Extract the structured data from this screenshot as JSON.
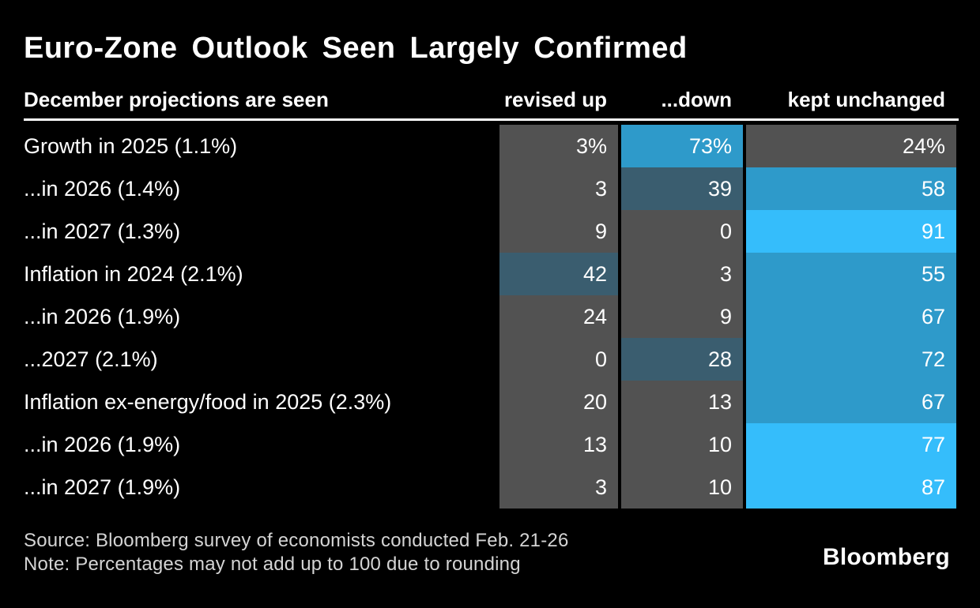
{
  "title": "Euro-Zone Outlook Seen Largely Confirmed",
  "chart_data": {
    "type": "heatmap",
    "title": "Euro-Zone Outlook Seen Largely Confirmed",
    "row_axis_label": "December projections are seen",
    "columns": [
      "revised up",
      "...down",
      "kept unchanged"
    ],
    "unit": "%",
    "rows": [
      {
        "label": "Growth in 2025 (1.1%)",
        "display": [
          "3%",
          "73%",
          "24%"
        ],
        "values": [
          3,
          73,
          24
        ]
      },
      {
        "label": "...in 2026 (1.4%)",
        "display": [
          "3",
          "39",
          "58"
        ],
        "values": [
          3,
          39,
          58
        ]
      },
      {
        "label": "...in 2027 (1.3%)",
        "display": [
          "9",
          "0",
          "91"
        ],
        "values": [
          9,
          0,
          91
        ]
      },
      {
        "label": "Inflation in 2024 (2.1%)",
        "display": [
          "42",
          "3",
          "55"
        ],
        "values": [
          42,
          3,
          55
        ]
      },
      {
        "label": "...in 2026 (1.9%)",
        "display": [
          "24",
          "9",
          "67"
        ],
        "values": [
          24,
          9,
          67
        ]
      },
      {
        "label": "...2027 (2.1%)",
        "display": [
          "0",
          "28",
          "72"
        ],
        "values": [
          0,
          28,
          72
        ]
      },
      {
        "label": "Inflation ex-energy/food in 2025 (2.3%)",
        "display": [
          "20",
          "13",
          "67"
        ],
        "values": [
          20,
          13,
          67
        ]
      },
      {
        "label": "...in 2026 (1.9%)",
        "display": [
          "13",
          "10",
          "77"
        ],
        "values": [
          13,
          10,
          77
        ]
      },
      {
        "label": "...in 2027 (1.9%)",
        "display": [
          "3",
          "10",
          "87"
        ],
        "values": [
          3,
          10,
          87
        ]
      }
    ],
    "color_scale": [
      {
        "min": 0,
        "max": 24,
        "color": "#525252"
      },
      {
        "min": 25,
        "max": 49,
        "color": "#3a5d6f"
      },
      {
        "min": 50,
        "max": 74,
        "color": "#2e9aca"
      },
      {
        "min": 75,
        "max": 100,
        "color": "#35bdfb"
      }
    ],
    "legend_position": "none",
    "grid": false
  },
  "footer": {
    "source": "Source: Bloomberg survey of economists conducted Feb. 21-26",
    "note": "Note: Percentages may not add up to 100 due to rounding",
    "logo": "Bloomberg"
  },
  "colors": {
    "background": "#000000",
    "text": "#ffffff",
    "footnote": "#d4d4d4",
    "cell_low": "#525252",
    "cell_mid_low": "#3a5d6f",
    "cell_mid_high": "#2e9aca",
    "cell_high": "#35bdfb"
  }
}
